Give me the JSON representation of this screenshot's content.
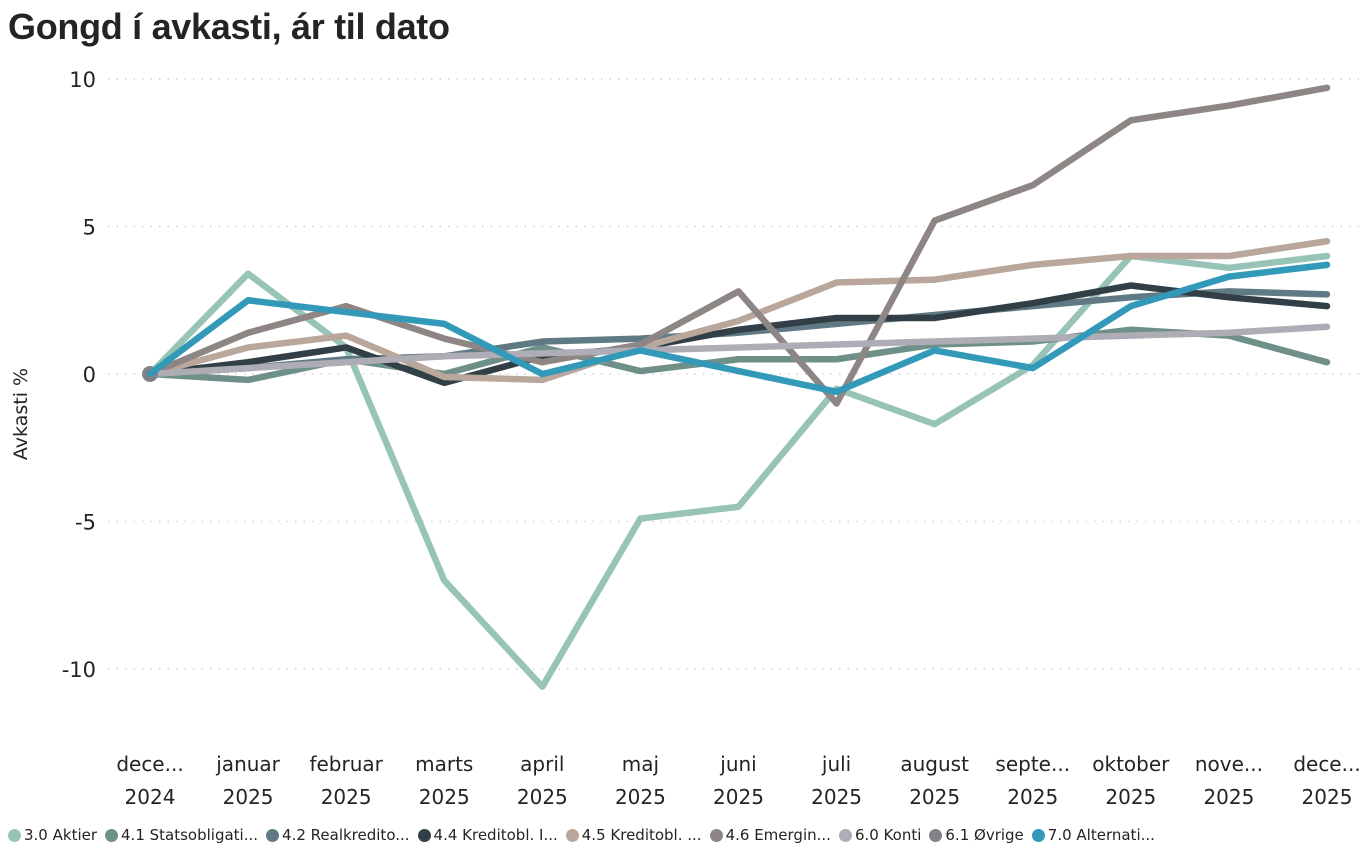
{
  "chart_data": {
    "type": "line",
    "title": "Gongd í avkasti, ár til dato",
    "xlabel": "",
    "ylabel": "Avkasti %",
    "ylim": [
      -10.5,
      10
    ],
    "yticks": [
      10,
      5,
      0,
      -5,
      -10
    ],
    "ytick_labels": [
      "10",
      "5",
      "0",
      "-5",
      "-10"
    ],
    "grid": "horizontal-dotted",
    "legend_position": "bottom",
    "categories": [
      [
        "dece...",
        "2024"
      ],
      [
        "januar",
        "2025"
      ],
      [
        "februar",
        "2025"
      ],
      [
        "marts",
        "2025"
      ],
      [
        "april",
        "2025"
      ],
      [
        "maj",
        "2025"
      ],
      [
        "juni",
        "2025"
      ],
      [
        "juli",
        "2025"
      ],
      [
        "august",
        "2025"
      ],
      [
        "septe...",
        "2025"
      ],
      [
        "oktober",
        "2025"
      ],
      [
        "nove...",
        "2025"
      ],
      [
        "dece...",
        "2025"
      ]
    ],
    "series": [
      {
        "name": "3.0 Aktier",
        "color": "#98C4B8",
        "values": [
          0,
          3.4,
          0.9,
          -7.0,
          -10.6,
          -4.9,
          -4.5,
          -0.5,
          -1.7,
          0.3,
          4.0,
          3.6,
          4.0
        ]
      },
      {
        "name": "4.1 Statsobligati...",
        "color": "#6F9088",
        "values": [
          0,
          -0.2,
          0.5,
          0.0,
          0.9,
          0.1,
          0.5,
          0.5,
          1.0,
          1.1,
          1.5,
          1.3,
          0.4
        ]
      },
      {
        "name": "4.2 Realkredito...",
        "color": "#5F7A84",
        "values": [
          0,
          0.2,
          0.5,
          0.6,
          1.1,
          1.2,
          1.4,
          1.7,
          2.0,
          2.3,
          2.6,
          2.8,
          2.7
        ]
      },
      {
        "name": "4.4 Kreditobl. I...",
        "color": "#323F46",
        "values": [
          0,
          0.4,
          0.9,
          -0.3,
          0.6,
          0.9,
          1.5,
          1.9,
          1.9,
          2.4,
          3.0,
          2.6,
          2.3
        ]
      },
      {
        "name": "4.5 Kreditobl. ...",
        "color": "#B8A79A",
        "values": [
          0,
          0.9,
          1.3,
          -0.1,
          -0.2,
          0.9,
          1.8,
          3.1,
          3.2,
          3.7,
          4.0,
          4.0,
          4.5
        ]
      },
      {
        "name": "4.6 Emergin...",
        "color": "#8D8685",
        "values": [
          0,
          1.4,
          2.3,
          1.2,
          0.4,
          1.0,
          2.8,
          -1.0,
          5.2,
          6.4,
          8.6,
          9.1,
          9.7
        ]
      },
      {
        "name": "6.0 Konti",
        "color": "#AEADB5",
        "values": [
          0,
          0.2,
          0.4,
          0.6,
          0.7,
          0.8,
          0.9,
          1.0,
          1.1,
          1.2,
          1.3,
          1.4,
          1.6
        ]
      },
      {
        "name": "6.1 Øvrige",
        "color": "#82818A",
        "values": [
          0,
          null,
          null,
          null,
          null,
          null,
          null,
          null,
          null,
          null,
          null,
          null,
          null
        ]
      },
      {
        "name": "7.0 Alternati...",
        "color": "#3399B9",
        "values": [
          0,
          2.5,
          2.1,
          1.7,
          0.0,
          0.8,
          0.1,
          -0.6,
          0.8,
          0.2,
          2.3,
          3.3,
          3.7
        ]
      }
    ]
  }
}
